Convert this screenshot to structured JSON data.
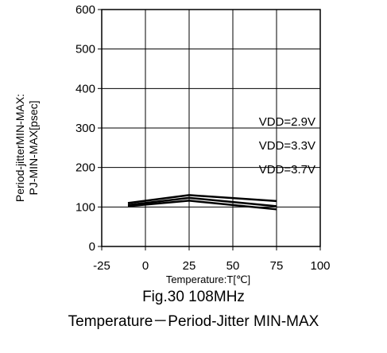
{
  "chart_data": {
    "type": "line",
    "xlabel": "Temperature:T[℃]",
    "ylabel": [
      "Period-jitterMIN-MAX:",
      "PJ-MIN-MAX[psec]"
    ],
    "xlim": [
      -25,
      100
    ],
    "ylim": [
      0,
      600
    ],
    "x_ticks": [
      -25,
      0,
      25,
      50,
      75,
      100
    ],
    "y_ticks": [
      0,
      100,
      200,
      300,
      400,
      500,
      600
    ],
    "grid": true,
    "series": [
      {
        "name": "VDD=2.9V",
        "x": [
          -10,
          25,
          75
        ],
        "y": [
          110,
          130,
          115
        ]
      },
      {
        "name": "VDD=3.3V",
        "x": [
          -10,
          25,
          75
        ],
        "y": [
          105,
          123,
          102
        ]
      },
      {
        "name": "VDD=3.7V",
        "x": [
          -10,
          25,
          75
        ],
        "y": [
          102,
          116,
          94
        ]
      }
    ],
    "line_color": "#000000"
  },
  "caption": {
    "figure": "Fig.30 108MHz",
    "title": "Temperature－Period-Jitter MIN-MAX"
  }
}
